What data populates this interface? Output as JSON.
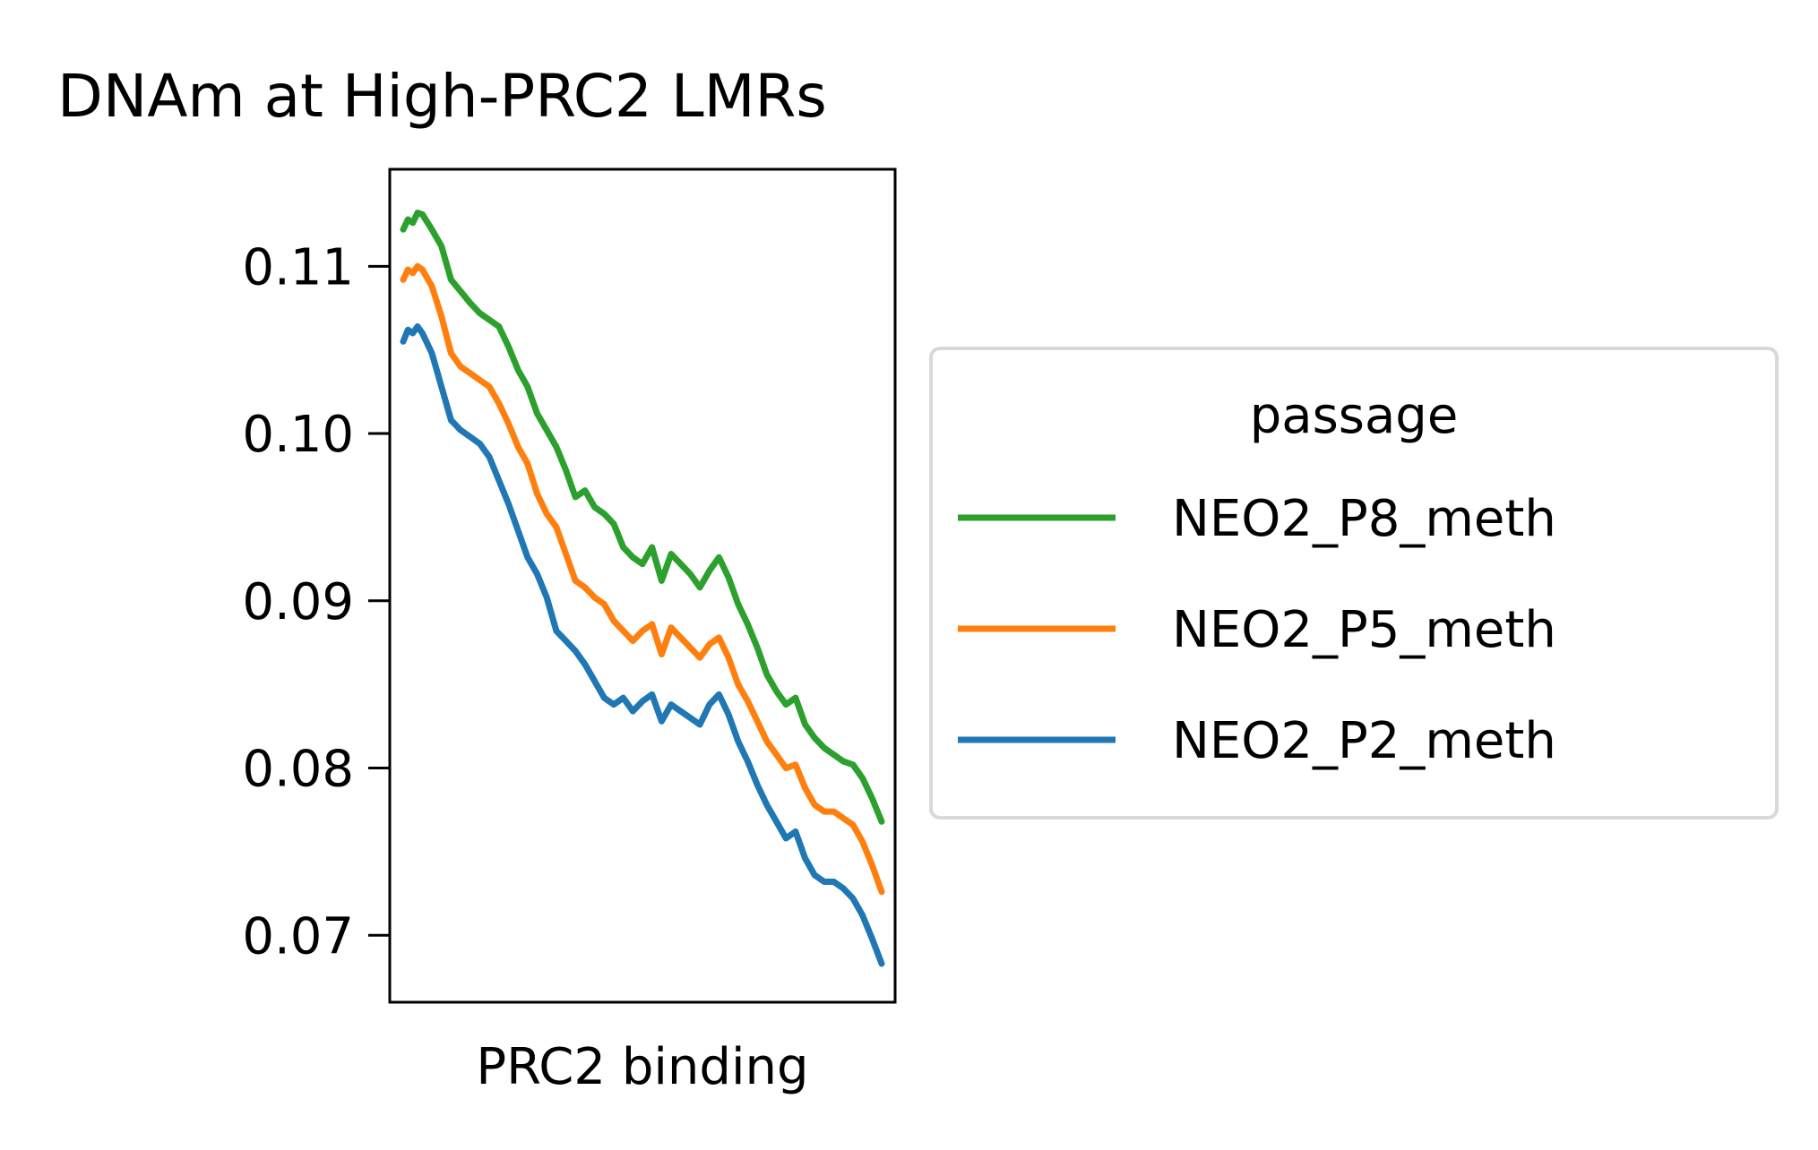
{
  "chart_data": {
    "type": "line",
    "title": "DNAm at High-PRC2 LMRs",
    "xlabel": "PRC2 binding",
    "ylabel": "",
    "x_ticks_shown": false,
    "ylim": [
      0.066,
      0.1158
    ],
    "yticks": [
      0.07,
      0.08,
      0.09,
      0.1,
      0.11
    ],
    "ytick_labels": [
      "0.07",
      "0.08",
      "0.09",
      "0.10",
      "0.11"
    ],
    "grid": false,
    "legend": {
      "title": "passage",
      "placement": "outside-right",
      "entries": [
        "NEO2_P8_meth",
        "NEO2_P5_meth",
        "NEO2_P2_meth"
      ]
    },
    "series": [
      {
        "name": "NEO2_P8_meth",
        "color": "#2ca02c",
        "x": [
          0,
          0.01,
          0.02,
          0.03,
          0.04,
          0.06,
          0.08,
          0.1,
          0.12,
          0.14,
          0.16,
          0.18,
          0.2,
          0.22,
          0.24,
          0.26,
          0.28,
          0.3,
          0.32,
          0.34,
          0.36,
          0.38,
          0.4,
          0.42,
          0.44,
          0.46,
          0.48,
          0.5,
          0.52,
          0.54,
          0.56,
          0.58,
          0.6,
          0.62,
          0.64,
          0.66,
          0.68,
          0.7,
          0.72,
          0.74,
          0.76,
          0.78,
          0.8,
          0.82,
          0.84,
          0.86,
          0.88,
          0.9,
          0.92,
          0.94,
          0.96,
          0.98,
          1.0
        ],
        "y": [
          0.1122,
          0.1128,
          0.1126,
          0.1132,
          0.1131,
          0.1122,
          0.1112,
          0.1092,
          0.1085,
          0.1078,
          0.1072,
          0.1068,
          0.1064,
          0.1052,
          0.1038,
          0.1028,
          0.1012,
          0.1002,
          0.0992,
          0.0978,
          0.0962,
          0.0966,
          0.0956,
          0.0952,
          0.0946,
          0.0932,
          0.0926,
          0.0922,
          0.0932,
          0.0912,
          0.0928,
          0.0922,
          0.0916,
          0.0908,
          0.0918,
          0.0926,
          0.0914,
          0.0898,
          0.0886,
          0.0872,
          0.0856,
          0.0846,
          0.0838,
          0.0842,
          0.0826,
          0.0818,
          0.0812,
          0.0808,
          0.0804,
          0.0802,
          0.0794,
          0.0782,
          0.0768
        ]
      },
      {
        "name": "NEO2_P5_meth",
        "color": "#ff7f0e",
        "x": [
          0,
          0.01,
          0.02,
          0.03,
          0.04,
          0.06,
          0.08,
          0.1,
          0.12,
          0.14,
          0.16,
          0.18,
          0.2,
          0.22,
          0.24,
          0.26,
          0.28,
          0.3,
          0.32,
          0.34,
          0.36,
          0.38,
          0.4,
          0.42,
          0.44,
          0.46,
          0.48,
          0.5,
          0.52,
          0.54,
          0.56,
          0.58,
          0.6,
          0.62,
          0.64,
          0.66,
          0.68,
          0.7,
          0.72,
          0.74,
          0.76,
          0.78,
          0.8,
          0.82,
          0.84,
          0.86,
          0.88,
          0.9,
          0.92,
          0.94,
          0.96,
          0.98,
          1.0
        ],
        "y": [
          0.1092,
          0.1098,
          0.1096,
          0.11,
          0.1098,
          0.1088,
          0.107,
          0.1048,
          0.104,
          0.1036,
          0.1032,
          0.1028,
          0.1018,
          0.1006,
          0.0992,
          0.0982,
          0.0964,
          0.0952,
          0.0944,
          0.0928,
          0.0912,
          0.0908,
          0.0902,
          0.0898,
          0.0888,
          0.0882,
          0.0876,
          0.0882,
          0.0886,
          0.0868,
          0.0884,
          0.0878,
          0.0872,
          0.0866,
          0.0874,
          0.0878,
          0.0866,
          0.085,
          0.084,
          0.0828,
          0.0816,
          0.0808,
          0.08,
          0.0802,
          0.0788,
          0.0778,
          0.0774,
          0.0774,
          0.077,
          0.0766,
          0.0756,
          0.0742,
          0.0726
        ]
      },
      {
        "name": "NEO2_P2_meth",
        "color": "#1f77b4",
        "x": [
          0,
          0.01,
          0.02,
          0.03,
          0.04,
          0.06,
          0.08,
          0.1,
          0.12,
          0.14,
          0.16,
          0.18,
          0.2,
          0.22,
          0.24,
          0.26,
          0.28,
          0.3,
          0.32,
          0.34,
          0.36,
          0.38,
          0.4,
          0.42,
          0.44,
          0.46,
          0.48,
          0.5,
          0.52,
          0.54,
          0.56,
          0.58,
          0.6,
          0.62,
          0.64,
          0.66,
          0.68,
          0.7,
          0.72,
          0.74,
          0.76,
          0.78,
          0.8,
          0.82,
          0.84,
          0.86,
          0.88,
          0.9,
          0.92,
          0.94,
          0.96,
          0.98,
          1.0
        ],
        "y": [
          0.1055,
          0.1062,
          0.106,
          0.1064,
          0.106,
          0.1048,
          0.1028,
          0.1008,
          0.1002,
          0.0998,
          0.0994,
          0.0986,
          0.0972,
          0.0958,
          0.0942,
          0.0926,
          0.0916,
          0.0902,
          0.0882,
          0.0876,
          0.087,
          0.0862,
          0.0852,
          0.0842,
          0.0838,
          0.0842,
          0.0834,
          0.084,
          0.0844,
          0.0828,
          0.0838,
          0.0834,
          0.083,
          0.0826,
          0.0838,
          0.0844,
          0.0832,
          0.0816,
          0.0804,
          0.079,
          0.0778,
          0.0768,
          0.0758,
          0.0762,
          0.0746,
          0.0736,
          0.0732,
          0.0732,
          0.0728,
          0.0722,
          0.0712,
          0.0698,
          0.0683
        ]
      }
    ]
  }
}
